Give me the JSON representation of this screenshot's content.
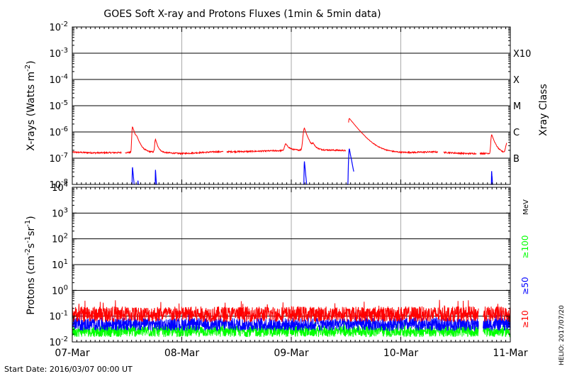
{
  "chart_data": [
    {
      "type": "line",
      "panel": "xrays",
      "title": "GOES Soft X-ray and Protons Fluxes   (1min & 5min data)",
      "ylabel_base": "X-rays (Watts m",
      "ylabel_exp": "-2",
      "ylabel_close": ")",
      "y_scale": "log",
      "ylim": [
        1e-08,
        0.01
      ],
      "xlim": [
        0,
        4
      ],
      "x_unit": "days since 2016-03-07 00:00 UT",
      "x_ticks": [
        {
          "x": 0,
          "label": "07-Mar"
        },
        {
          "x": 1,
          "label": "08-Mar"
        },
        {
          "x": 2,
          "label": "09-Mar"
        },
        {
          "x": 3,
          "label": "10-Mar"
        },
        {
          "x": 4,
          "label": "11-Mar"
        }
      ],
      "y_ticks": [
        {
          "exp": -8,
          "base": "10",
          "sup": "-8"
        },
        {
          "exp": -7,
          "base": "10",
          "sup": "-7"
        },
        {
          "exp": -6,
          "base": "10",
          "sup": "-6"
        },
        {
          "exp": -5,
          "base": "10",
          "sup": "-5"
        },
        {
          "exp": -4,
          "base": "10",
          "sup": "-4"
        },
        {
          "exp": -3,
          "base": "10",
          "sup": "-3"
        },
        {
          "exp": -2,
          "base": "10",
          "sup": "-2"
        }
      ],
      "right_axis_title": "Xray Class",
      "right_labels": [
        {
          "exp": -7,
          "label": "B"
        },
        {
          "exp": -6,
          "label": "C"
        },
        {
          "exp": -5,
          "label": "M"
        },
        {
          "exp": -4,
          "label": "X"
        },
        {
          "exp": -3,
          "label": "X10"
        }
      ],
      "grid": true,
      "series": [
        {
          "name": "",
          "color": "#ff0000",
          "baseline": [
            [
              0.0,
              1.7e-07
            ],
            [
              0.2,
              1.6e-07
            ],
            [
              0.5,
              1.65e-07
            ],
            [
              0.75,
              1.7e-07
            ],
            [
              1.0,
              1.5e-07
            ],
            [
              1.3,
              1.75e-07
            ],
            [
              1.6,
              1.8e-07
            ],
            [
              1.8,
              1.9e-07
            ],
            [
              2.0,
              2e-07
            ],
            [
              2.2,
              2.1e-07
            ],
            [
              2.45,
              2e-07
            ],
            [
              2.7,
              1.65e-07
            ],
            [
              3.0,
              1.6e-07
            ],
            [
              3.3,
              1.75e-07
            ],
            [
              3.6,
              1.5e-07
            ],
            [
              3.9,
              1.55e-07
            ],
            [
              4.0,
              1.6e-07
            ]
          ],
          "gaps": [
            [
              0.45,
              0.48
            ],
            [
              1.38,
              1.41
            ],
            [
              2.5,
              2.52
            ],
            [
              3.34,
              3.39
            ],
            [
              3.69,
              3.72
            ],
            [
              3.97,
              4.0
            ]
          ],
          "flares": [
            {
              "t": 0.55,
              "peak": 1.6e-06,
              "rise": 0.005,
              "decay": 0.03
            },
            {
              "t": 0.59,
              "peak": 3.2e-07,
              "rise": 0.008,
              "decay": 0.03
            },
            {
              "t": 0.76,
              "peak": 5.2e-07,
              "rise": 0.006,
              "decay": 0.02
            },
            {
              "t": 1.95,
              "peak": 3.5e-07,
              "rise": 0.01,
              "decay": 0.03
            },
            {
              "t": 2.12,
              "peak": 1.4e-06,
              "rise": 0.01,
              "decay": 0.03
            },
            {
              "t": 2.2,
              "peak": 3e-07,
              "rise": 0.008,
              "decay": 0.02
            },
            {
              "t": 2.53,
              "peak": 3.3e-06,
              "rise": 0.008,
              "decay": 0.08
            },
            {
              "t": 3.83,
              "peak": 8e-07,
              "rise": 0.006,
              "decay": 0.03
            },
            {
              "t": 3.97,
              "peak": 3.8e-07,
              "rise": 0.01,
              "decay": 0.03
            }
          ]
        },
        {
          "name": "",
          "color": "#0000ff",
          "bursts": [
            {
              "t": 0.55,
              "peak": 4.5e-08,
              "width": 0.03
            },
            {
              "t": 0.6,
              "peak": 1.4e-08,
              "width": 0.02
            },
            {
              "t": 0.76,
              "peak": 3.6e-08,
              "width": 0.02
            },
            {
              "t": 2.12,
              "peak": 7.5e-08,
              "width": 0.03
            },
            {
              "t": 2.53,
              "peak": 2.3e-07,
              "width": 0.06
            },
            {
              "t": 3.83,
              "peak": 3.2e-08,
              "width": 0.02
            }
          ]
        }
      ]
    },
    {
      "type": "line",
      "panel": "protons",
      "ylabel_base": "Protons (cm",
      "ylabel_exp1": "-2",
      "ylabel_mid": "s",
      "ylabel_exp2": "-1",
      "ylabel_mid2": "sr",
      "ylabel_exp3": "-1",
      "ylabel_close": ")",
      "y_scale": "log",
      "ylim": [
        0.01,
        10000
      ],
      "xlim": [
        0,
        4
      ],
      "x_unit": "days since 2016-03-07 00:00 UT",
      "x_ticks": [
        {
          "x": 0,
          "label": "07-Mar"
        },
        {
          "x": 1,
          "label": "08-Mar"
        },
        {
          "x": 2,
          "label": "09-Mar"
        },
        {
          "x": 3,
          "label": "10-Mar"
        },
        {
          "x": 4,
          "label": "11-Mar"
        }
      ],
      "y_ticks": [
        {
          "exp": -2,
          "base": "10",
          "sup": "-2"
        },
        {
          "exp": -1,
          "base": "10",
          "sup": "-1"
        },
        {
          "exp": 0,
          "base": "10",
          "sup": "0"
        },
        {
          "exp": 1,
          "base": "10",
          "sup": "1"
        },
        {
          "exp": 2,
          "base": "10",
          "sup": "2"
        },
        {
          "exp": 3,
          "base": "10",
          "sup": "3"
        },
        {
          "exp": 4,
          "base": "10",
          "sup": "4"
        }
      ],
      "threshold": 10,
      "grid": true,
      "right_unit": "MeV",
      "gap": [
        3.71,
        3.75
      ],
      "series": [
        {
          "name": "≥10",
          "color": "#ff0000",
          "level": 0.12,
          "spread": 0.3
        },
        {
          "name": "≥50",
          "color": "#0000ff",
          "level": 0.048,
          "spread": 0.25
        },
        {
          "name": "≥100",
          "color": "#00ff00",
          "level": 0.026,
          "spread": 0.22
        }
      ]
    }
  ],
  "footer": {
    "start_date": "Start Date: 2016/03/07 00:00 UT",
    "credit": "HELIO: 2017/07/20"
  }
}
